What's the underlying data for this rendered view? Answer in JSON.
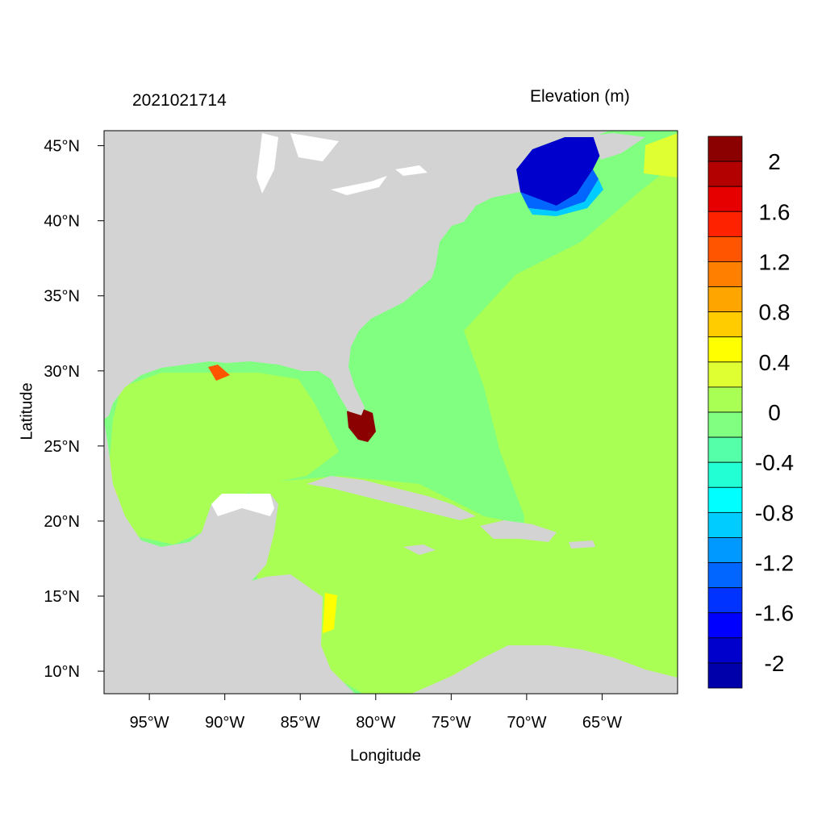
{
  "title_left": "2021021714",
  "title_right": "Elevation (m)",
  "x_axis": {
    "label": "Longitude",
    "ticks": [
      "95°W",
      "90°W",
      "85°W",
      "80°W",
      "75°W",
      "70°W",
      "65°W"
    ],
    "tick_values": [
      -95,
      -90,
      -85,
      -80,
      -75,
      -70,
      -65
    ],
    "range": [
      -98,
      -60
    ]
  },
  "y_axis": {
    "label": "Latitude",
    "ticks": [
      "45°N",
      "40°N",
      "35°N",
      "30°N",
      "25°N",
      "20°N",
      "15°N",
      "10°N"
    ],
    "tick_values": [
      45,
      40,
      35,
      30,
      25,
      20,
      15,
      10
    ],
    "range": [
      8.5,
      46
    ]
  },
  "colorbar": {
    "labels": [
      "2",
      "1.6",
      "1.2",
      "0.8",
      "0.4",
      "0",
      "-0.4",
      "-0.8",
      "-1.2",
      "-1.6",
      "-2"
    ],
    "colors": [
      "#8b0000",
      "#b30000",
      "#e60000",
      "#ff2200",
      "#ff5500",
      "#ff7f00",
      "#ffa500",
      "#ffcc00",
      "#ffff00",
      "#dfff33",
      "#aaff55",
      "#80ff80",
      "#55ffaa",
      "#22ffd5",
      "#00ffff",
      "#00ccff",
      "#0099ff",
      "#0066ff",
      "#0033ff",
      "#0000ff",
      "#0000cc",
      "#0000aa"
    ]
  },
  "colors": {
    "land": "#d3d3d3",
    "ocean_zero": "#aaff55",
    "ocean_minus": "#80ff80"
  }
}
